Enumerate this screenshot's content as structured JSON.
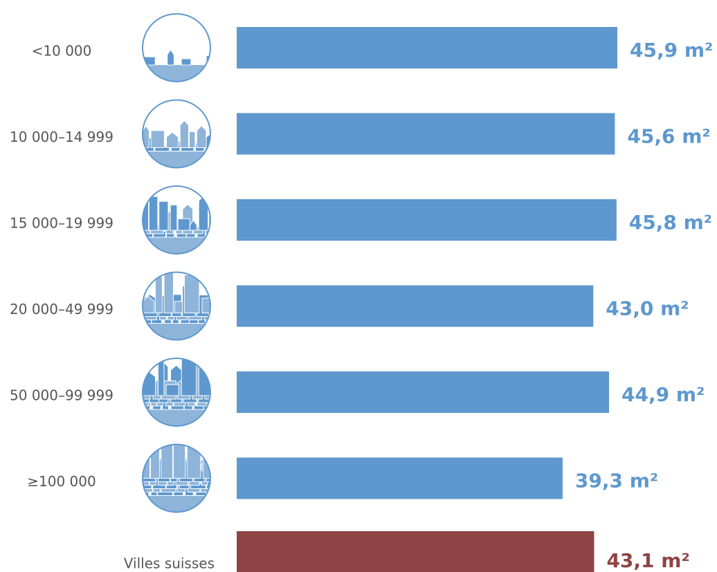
{
  "chart_data": {
    "type": "bar",
    "orientation": "horizontal",
    "categories": [
      "<10 000",
      "10 000–14 999",
      "15 000–19 999",
      "20 000–49 999",
      "50 000–99 999",
      "≥100 000",
      "Villes suisses"
    ],
    "values": [
      45.9,
      45.6,
      45.8,
      43.0,
      44.9,
      39.3,
      43.1
    ],
    "value_labels": [
      "45,9 m²",
      "45,6 m²",
      "45,8 m²",
      "43,0 m²",
      "44,9 m²",
      "39,3 m²",
      "43,1 m²"
    ],
    "colors": [
      "#5e98ce",
      "#5e98ce",
      "#5e98ce",
      "#5e98ce",
      "#5e98ce",
      "#5e98ce",
      "#8e4444"
    ]
  }
}
